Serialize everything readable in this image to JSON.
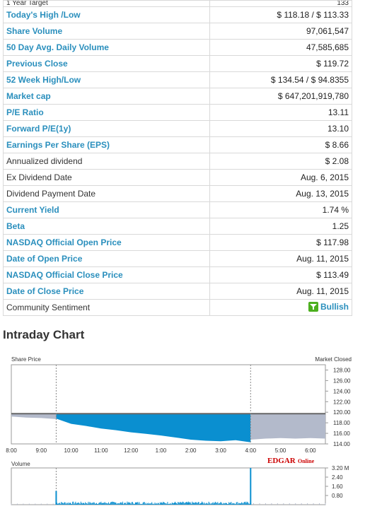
{
  "table": {
    "partial_row": {
      "label": "1 Year Target",
      "value": "133"
    },
    "rows": [
      {
        "label": "Today's High /Low",
        "value": "$ 118.18 / $ 113.33",
        "link": true
      },
      {
        "label": "Share Volume",
        "value": "97,061,547",
        "link": true
      },
      {
        "label": "50 Day Avg. Daily Volume",
        "value": "47,585,685",
        "link": true
      },
      {
        "label": "Previous Close",
        "value": "$ 119.72",
        "link": true
      },
      {
        "label": "52 Week High/Low",
        "value": "$ 134.54 / $ 94.8355",
        "link": true
      },
      {
        "label": "Market cap",
        "value": "$ 647,201,919,780",
        "link": true
      },
      {
        "label": "P/E Ratio",
        "value": "13.11",
        "link": true
      },
      {
        "label": "Forward P/E(1y)",
        "value": "13.10",
        "link": true
      },
      {
        "label": "Earnings Per Share (EPS)",
        "value": "$ 8.66",
        "link": true
      },
      {
        "label": "Annualized dividend",
        "value": "$ 2.08",
        "link": false
      },
      {
        "label": "Ex Dividend Date",
        "value": "Aug. 6, 2015",
        "link": false
      },
      {
        "label": "Dividend Payment Date",
        "value": "Aug. 13, 2015",
        "link": false
      },
      {
        "label": "Current Yield",
        "value": "1.74 %",
        "link": true
      },
      {
        "label": "Beta",
        "value": "1.25",
        "link": true
      },
      {
        "label": "NASDAQ Official Open Price",
        "value": "$ 117.98",
        "link": true
      },
      {
        "label": "Date of Open Price",
        "value": "Aug. 11, 2015",
        "link": true
      },
      {
        "label": "NASDAQ Official Close Price",
        "value": "$ 113.49",
        "link": true
      },
      {
        "label": "Date of Close Price",
        "value": "Aug. 11, 2015",
        "link": true
      }
    ],
    "sentiment": {
      "label": "Community Sentiment",
      "value": "Bullish",
      "icon": "bullish-funnel-icon",
      "icon_color": "#4caf1e"
    }
  },
  "chart_section_title": "Intraday Chart",
  "chart_data": {
    "type": "area",
    "price_label": "Share Price",
    "status_label": "Market Closed",
    "volume_label": "Volume",
    "brand_logo": "EDGAROnline",
    "price_ticks": [
      "128.00",
      "126.00",
      "124.00",
      "122.00",
      "120.00",
      "118.00",
      "116.00",
      "114.00"
    ],
    "price_ylim": [
      114,
      129
    ],
    "previous_close": 119.72,
    "x_ticks": [
      "8:00",
      "9:00",
      "10:00",
      "11:00",
      "12:00",
      "1:00",
      "2:00",
      "3:00",
      "4:00",
      "5:00",
      "6:00"
    ],
    "volume_ticks": [
      "3.20 M",
      "2.40",
      "1.60",
      "0.80"
    ],
    "colors": {
      "session": "#0a8fd0",
      "extended": "#b3bacb",
      "prev_close_line": "#666666",
      "logo_red": "#cc0000"
    },
    "sessions": {
      "pre_market": {
        "x": [
          8.0,
          8.5,
          9.0,
          9.5
        ],
        "y": [
          119.2,
          119.0,
          118.9,
          118.7
        ]
      },
      "regular": {
        "x": [
          9.5,
          10.0,
          10.5,
          11.0,
          11.5,
          12.0,
          12.5,
          13.0,
          13.5,
          14.0,
          14.5,
          15.0,
          15.5,
          16.0
        ],
        "y": [
          118.8,
          117.8,
          117.4,
          116.9,
          116.6,
          116.2,
          115.9,
          115.6,
          115.2,
          114.8,
          114.6,
          114.5,
          114.7,
          114.3
        ]
      },
      "after_hours": {
        "x": [
          16.0,
          16.5,
          17.0,
          17.5,
          18.0,
          18.5
        ],
        "y": [
          114.8,
          115.0,
          115.1,
          115.0,
          115.1,
          115.0
        ]
      }
    },
    "volume_spikes": [
      {
        "x": 9.5,
        "v": 1.2
      },
      {
        "x": 16.0,
        "v": 3.2
      }
    ]
  }
}
